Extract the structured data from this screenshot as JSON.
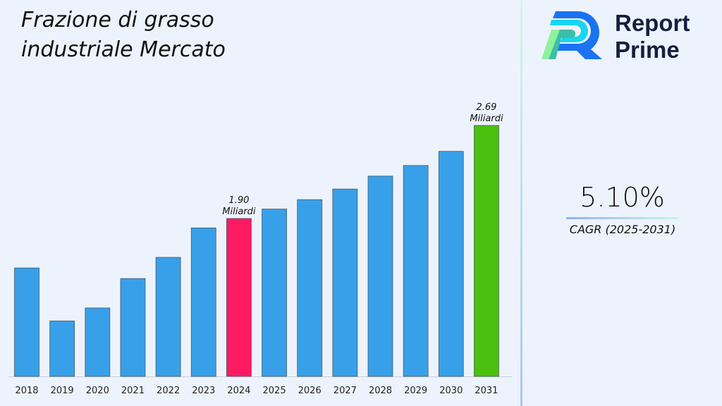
{
  "title_lines": [
    "Frazione di grasso",
    "industriale Mercato"
  ],
  "logo": {
    "line1": "Report",
    "line2": "Prime"
  },
  "cagr": {
    "value": "5.10%",
    "label": "CAGR (2025-2031)"
  },
  "colors": {
    "default": "#38a0e8",
    "highlight_2024": "#fc1a63",
    "highlight_2031": "#4cc00e",
    "background": "#edf3fd"
  },
  "chart_data": {
    "type": "bar",
    "title": "Frazione di grasso industriale Mercato",
    "categories": [
      "2018",
      "2019",
      "2020",
      "2021",
      "2022",
      "2023",
      "2024",
      "2025",
      "2026",
      "2027",
      "2028",
      "2029",
      "2030",
      "2031"
    ],
    "values": [
      1.48,
      1.03,
      1.14,
      1.39,
      1.57,
      1.82,
      1.9,
      1.98,
      2.06,
      2.15,
      2.26,
      2.35,
      2.47,
      2.69
    ],
    "unit": "Miliardi",
    "annotations": [
      {
        "category": "2024",
        "line1": "1.90",
        "line2": "Miliardi"
      },
      {
        "category": "2031",
        "line1": "2.69",
        "line2": "Miliardi"
      }
    ],
    "grid": false,
    "legend": "none"
  }
}
